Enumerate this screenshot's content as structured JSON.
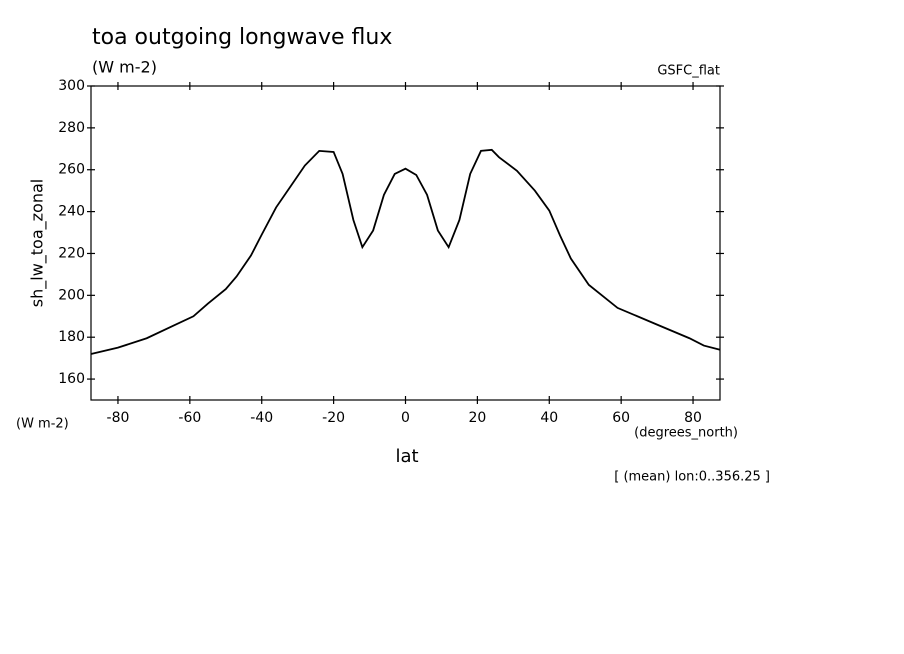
{
  "chart_data": {
    "type": "line",
    "title": "toa outgoing longwave flux",
    "subtitle": "(W m-2)",
    "source": "GSFC_flat",
    "y_label": "sh_lw_toa_zonal",
    "y_unit": "(W m-2)",
    "x_unit": "(degrees_north)",
    "x_label": "lat",
    "annotation": "[ (mean) lon:0..356.25 ]",
    "x": [
      -87.5,
      -80,
      -72,
      -64,
      -59,
      -55,
      -50,
      -47,
      -43,
      -40,
      -36,
      -32,
      -28,
      -24,
      -20,
      -17.5,
      -14.5,
      -12,
      -9,
      -6,
      -3,
      0,
      3,
      6,
      9,
      12,
      15,
      18,
      21,
      24,
      26,
      31,
      36,
      40,
      43,
      46,
      51,
      59,
      70,
      79,
      83,
      87.5
    ],
    "series": [
      {
        "name": "sh_lw_toa_zonal",
        "color": "#000000",
        "values": [
          172,
          175,
          179.5,
          186,
          190,
          196,
          203,
          209,
          219,
          229,
          242,
          252,
          262,
          269,
          268.5,
          258,
          236,
          223,
          231,
          248,
          258,
          260.5,
          257.5,
          248,
          231,
          223,
          236,
          258,
          269,
          269.5,
          266,
          259.5,
          250,
          240.5,
          228.6,
          217.6,
          205,
          194,
          186,
          179.5,
          176,
          174
        ]
      }
    ],
    "xlim": [
      -87.5,
      87.5
    ],
    "ylim": [
      150,
      300
    ],
    "xticks": [
      -80,
      -60,
      -40,
      -20,
      0,
      20,
      40,
      60,
      80
    ],
    "yticks": [
      160,
      180,
      200,
      220,
      240,
      260,
      280,
      300
    ]
  }
}
